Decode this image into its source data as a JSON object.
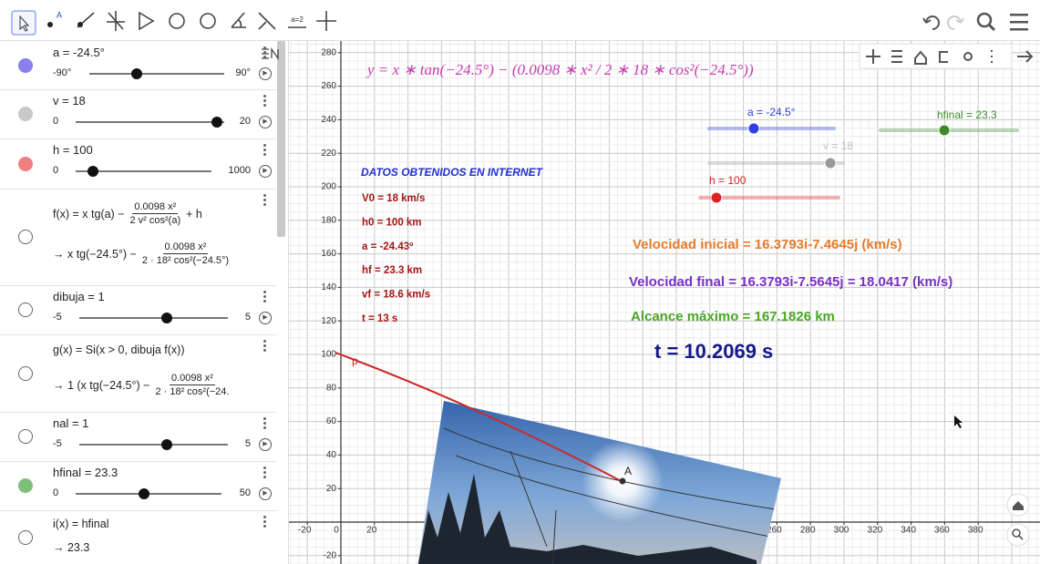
{
  "toolbar": {
    "slider_tool": "a=2"
  },
  "algebra": {
    "items": [
      {
        "text": "a = -24.5°",
        "min": "-90°",
        "max": "90°",
        "color": "#8a7ef0"
      },
      {
        "text": "v = 18",
        "min": "0",
        "max": "20",
        "color": "#c8c8c8"
      },
      {
        "text": "h = 100",
        "min": "0",
        "max": "1000",
        "color": "#f08080"
      },
      {
        "definition": {
          "lhs": "f(x) = x tg(a) −",
          "num": "0.0098 x²",
          "den": "2 v² cos²(a)",
          "rhs": "+ h"
        },
        "value": {
          "lhs": "→   x tg(−24.5°) −",
          "num": "0.0098 x²",
          "den": "2 · 18²  cos²(−24.5°)"
        }
      },
      {
        "text": "dibuja = 1",
        "min": "-5",
        "max": "5"
      },
      {
        "definition": {
          "lhs": "g(x) = Si(x > 0, dibuja f(x))"
        },
        "value": {
          "lhs": "→   1 (x tg(−24.5°) −",
          "num": "0.0098 x²",
          "den": "2 · 18²  cos²(−24."
        }
      },
      {
        "text": "nal = 1",
        "min": "-5",
        "max": "5"
      },
      {
        "text": "hfinal = 23.3",
        "min": "0",
        "max": "50",
        "color": "#7cc07c"
      },
      {
        "definition": {
          "lhs": "i(x) = hfinal"
        },
        "value": {
          "lhs": "→   23.3"
        }
      }
    ]
  },
  "graphics": {
    "formula": "y = x ∗ tan(−24.5°) − (0.0098 ∗ x² / 2 ∗ 18 ∗ cos²(−24.5°))",
    "yticks": [
      280,
      260,
      240,
      220,
      200,
      180,
      160,
      140,
      120,
      100,
      80,
      60,
      40,
      20,
      -20
    ],
    "xticks": [
      -20,
      0,
      20,
      260,
      280,
      300,
      320,
      340,
      360,
      380
    ],
    "sliders": [
      {
        "label": "a = -24.5°",
        "color": "#2f3ee0"
      },
      {
        "label": "v = 18",
        "color": "#9a9a9a"
      },
      {
        "label": "h = 100",
        "color": "#e02020"
      },
      {
        "label": "hfinal = 23.3",
        "color": "#3c8c2c"
      }
    ],
    "internet_title": "DATOS OBTENIDOS EN INTERNET",
    "internet_data": [
      "V0 = 18 km/s",
      "h0 = 100 km",
      "a = -24.43º",
      "hf = 23.3 km",
      "vf = 18.6 km/s",
      "t = 13 s"
    ],
    "velocidad_inicial": "Velocidad inicial = 16.3793i-7.4645j (km/s)",
    "velocidad_final": "Velocidad final = 16.3793i-7.5645j = 18.0417 (km/s)",
    "alcance": "Alcance máximo = 167.1826 km",
    "tiempo": "t = 10.2069 s",
    "point_label": "A",
    "curve_label": "p"
  }
}
